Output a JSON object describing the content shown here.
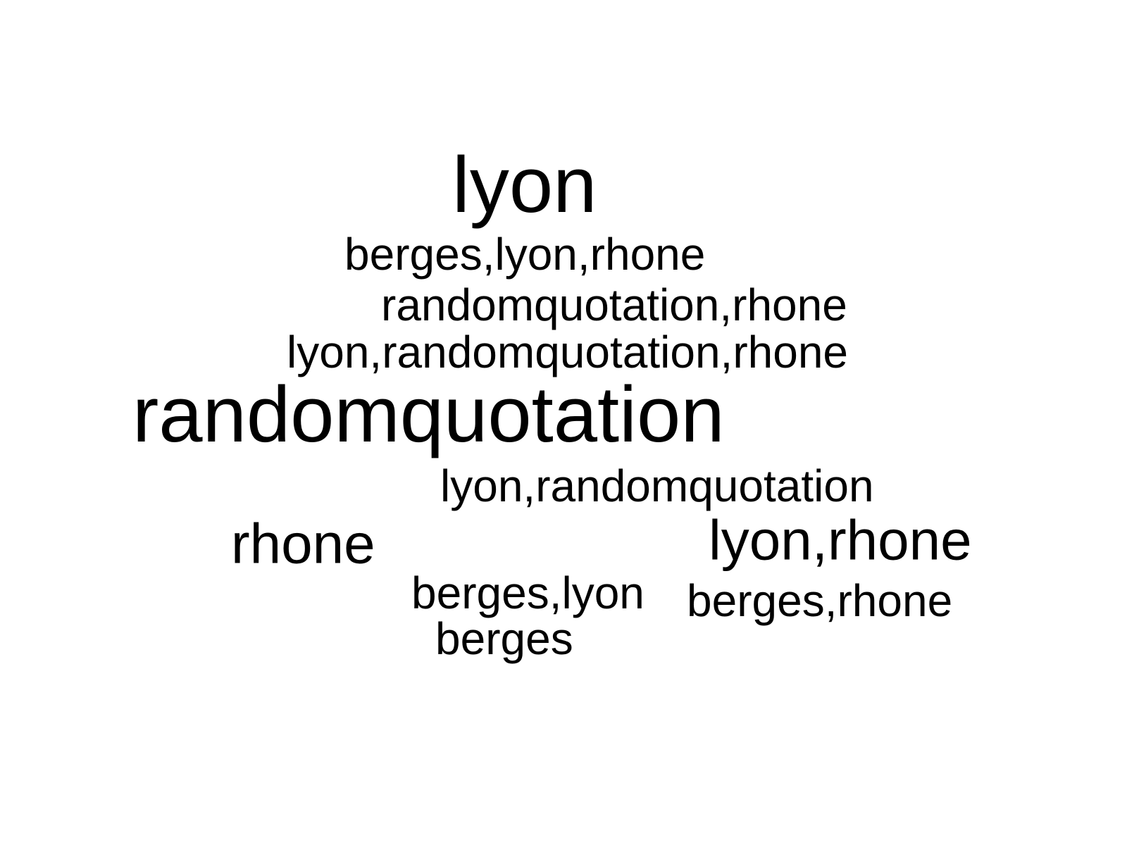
{
  "background_color": "#ffffff",
  "text_color": "#000000",
  "words": [
    {
      "text": "lyon",
      "weight": 3
    },
    {
      "text": "berges,lyon,rhone",
      "weight": 1
    },
    {
      "text": "randomquotation,rhone",
      "weight": 1
    },
    {
      "text": "lyon,randomquotation,rhone",
      "weight": 1
    },
    {
      "text": "randomquotation",
      "weight": 4
    },
    {
      "text": "lyon,randomquotation",
      "weight": 1
    },
    {
      "text": "rhone",
      "weight": 2
    },
    {
      "text": "lyon,rhone",
      "weight": 2
    },
    {
      "text": "berges,lyon",
      "weight": 1
    },
    {
      "text": "berges,rhone",
      "weight": 1
    },
    {
      "text": "berges",
      "weight": 1
    }
  ]
}
